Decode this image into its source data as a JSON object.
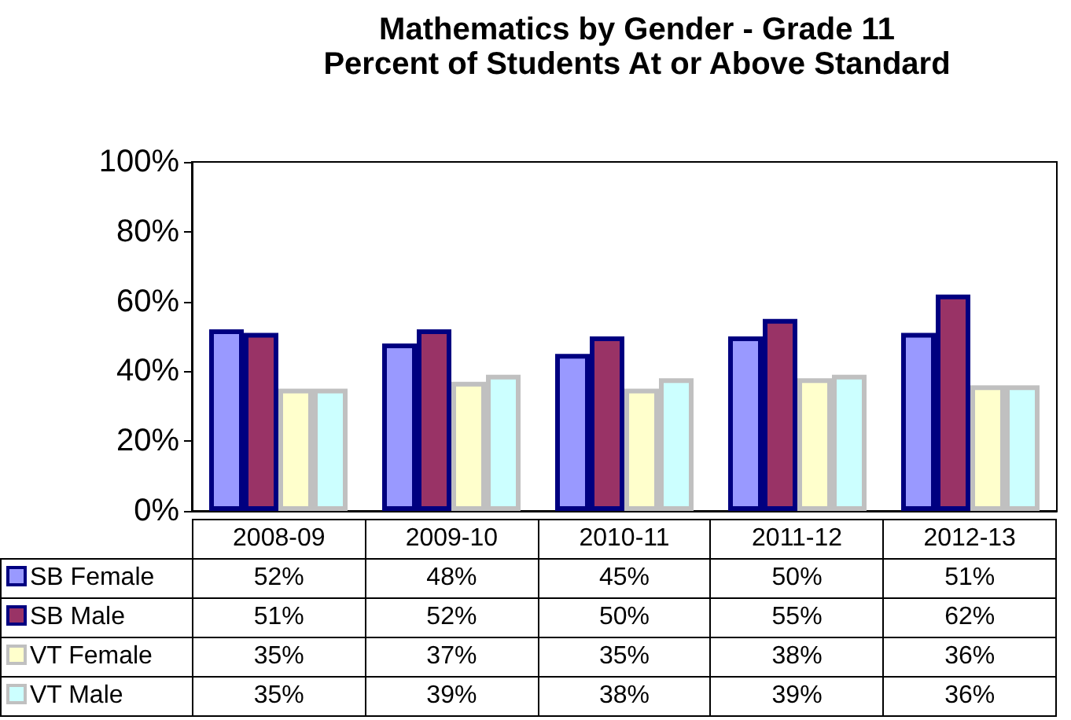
{
  "chart_data": {
    "type": "bar",
    "title": "Mathematics by Gender - Grade 11",
    "subtitle": "Percent of Students At or Above Standard",
    "categories": [
      "2008-09",
      "2009-10",
      "2010-11",
      "2011-12",
      "2012-13"
    ],
    "series": [
      {
        "name": "SB Female",
        "color": "#9999ff",
        "values": [
          52,
          48,
          45,
          50,
          51
        ],
        "value_labels": [
          "52%",
          "48%",
          "45%",
          "50%",
          "51%"
        ]
      },
      {
        "name": "SB Male",
        "color": "#993366",
        "values": [
          51,
          52,
          50,
          55,
          62
        ],
        "value_labels": [
          "51%",
          "52%",
          "50%",
          "55%",
          "62%"
        ]
      },
      {
        "name": "VT Female",
        "color": "#ffffcc",
        "values": [
          35,
          37,
          35,
          38,
          36
        ],
        "value_labels": [
          "35%",
          "37%",
          "35%",
          "38%",
          "36%"
        ]
      },
      {
        "name": "VT Male",
        "color": "#ccffff",
        "values": [
          35,
          39,
          38,
          39,
          36
        ],
        "value_labels": [
          "35%",
          "39%",
          "38%",
          "39%",
          "36%"
        ]
      }
    ],
    "ylim": [
      0,
      100
    ],
    "yticks": [
      {
        "value": 0,
        "label": "0%"
      },
      {
        "value": 20,
        "label": "20%"
      },
      {
        "value": 40,
        "label": "40%"
      },
      {
        "value": 60,
        "label": "60%"
      },
      {
        "value": 80,
        "label": "80%"
      },
      {
        "value": 100,
        "label": "100%"
      }
    ],
    "grid": false,
    "legend": "bottom"
  }
}
